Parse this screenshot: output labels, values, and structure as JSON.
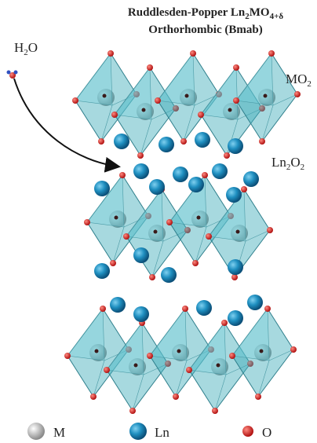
{
  "title": {
    "line1": [
      "Ruddlesden-Popper Ln",
      "2",
      "MO",
      "4+δ"
    ],
    "line2": "Orthorhombic (Bmab)"
  },
  "labels": {
    "water": [
      "H",
      "2",
      "O"
    ],
    "mo2": [
      "MO",
      "2"
    ],
    "ln2o2": [
      "Ln",
      "2",
      "O",
      "2"
    ]
  },
  "legend": [
    "M",
    "Ln",
    "O"
  ]
}
